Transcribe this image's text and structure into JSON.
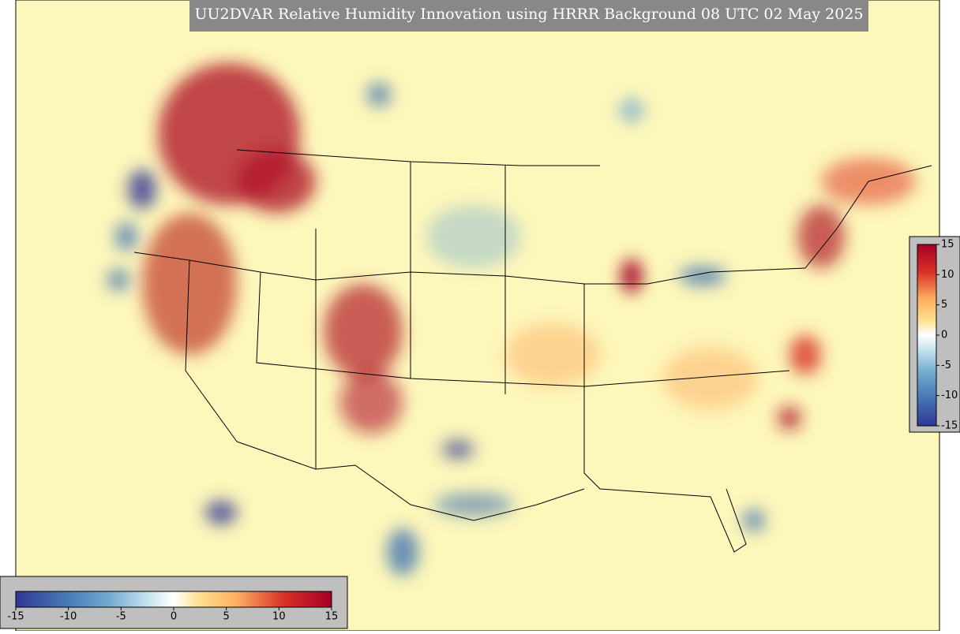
{
  "title": "UU2DVAR Relative Humidity Innovation using HRRR Background 08 UTC 02 May 2025",
  "colorbar_horizontal": {
    "lim": [
      -15,
      15
    ],
    "ticks": [
      -15,
      -10,
      -5,
      0,
      5,
      10,
      15
    ]
  },
  "colorbar_vertical": {
    "lim": [
      -15,
      15
    ],
    "ticks": [
      -15,
      -10,
      -5,
      0,
      5,
      10,
      15
    ]
  }
}
